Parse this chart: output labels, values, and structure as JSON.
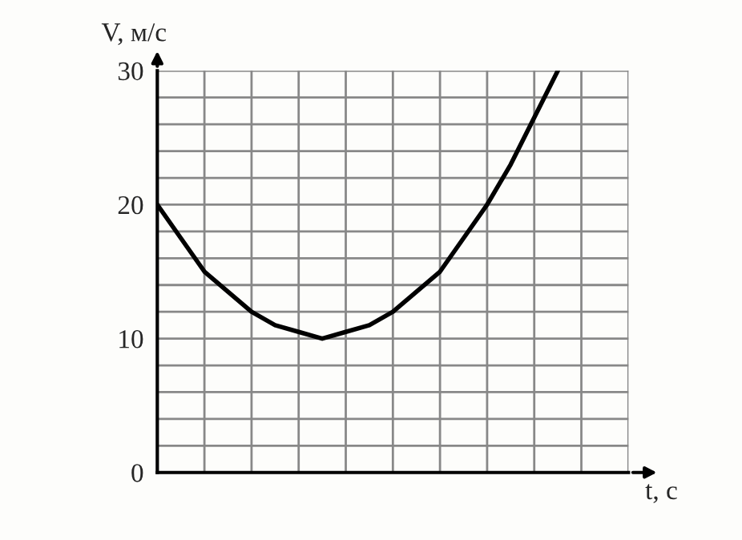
{
  "chart_data": {
    "type": "line",
    "xlabel": "t, с",
    "ylabel": "V, м/с",
    "categories": [
      null,
      null,
      null,
      null,
      null,
      null,
      null,
      null,
      null,
      null,
      null,
      null,
      null,
      null,
      null,
      null,
      null,
      null,
      null,
      null,
      null
    ],
    "series": [
      {
        "color": "#000000",
        "values": [
          20,
          17.5,
          15,
          13.5,
          12,
          11,
          10.5,
          10,
          10.5,
          11,
          12,
          13.5,
          15,
          17.5,
          20,
          23,
          26.5,
          30,
          null,
          null,
          null
        ]
      }
    ],
    "ylim": [
      0,
      30
    ],
    "yticks": [
      0,
      {
        "value": 2,
        "label": null
      },
      {
        "value": 4,
        "label": null
      },
      {
        "value": 6,
        "label": null
      },
      {
        "value": 8,
        "label": null
      },
      10,
      {
        "value": 12,
        "label": null
      },
      {
        "value": 14,
        "label": null
      },
      {
        "value": 16,
        "label": null
      },
      {
        "value": 18,
        "label": null
      },
      20,
      {
        "value": 22,
        "label": null
      },
      {
        "value": 24,
        "label": null
      },
      {
        "value": 26,
        "label": null
      },
      {
        "value": 28,
        "label": null
      },
      30
    ],
    "grid": true,
    "legend": false,
    "marker": "none",
    "line_style": "solid"
  }
}
